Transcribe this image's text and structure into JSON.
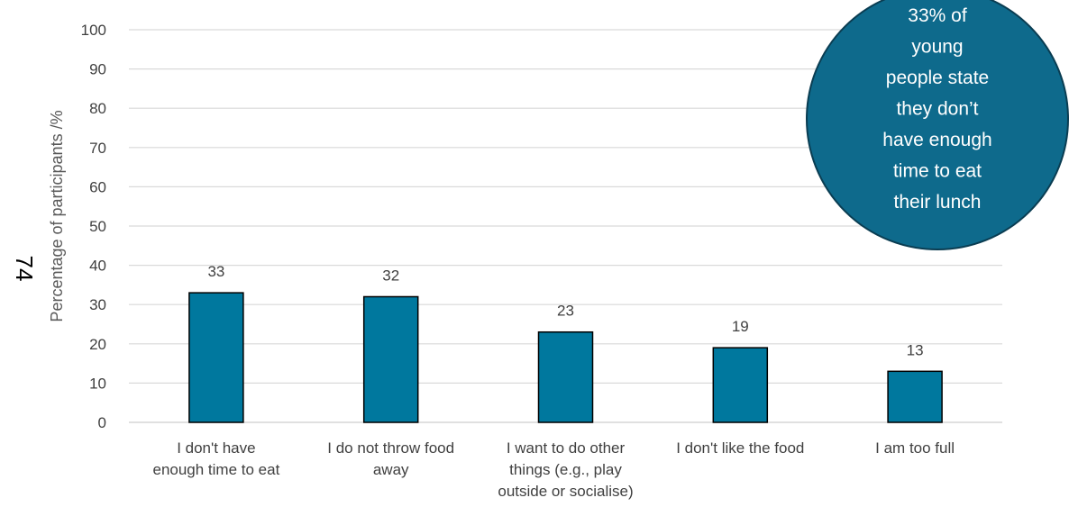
{
  "page_number": "74",
  "chart_data": {
    "type": "bar",
    "categories": [
      [
        "I don't have",
        "enough time to eat"
      ],
      [
        "I do not throw food",
        "away"
      ],
      [
        "I want to do other",
        "things (e.g., play",
        "outside or socialise)"
      ],
      [
        "I don't like the food"
      ],
      [
        "I am too full"
      ]
    ],
    "values": [
      33,
      32,
      23,
      19,
      13
    ],
    "data_labels": [
      "33",
      "32",
      "23",
      "19",
      "13"
    ],
    "ylabel": "Percentage of participants /%",
    "ylim": [
      0,
      100
    ],
    "yticks": [
      "0",
      "10",
      "20",
      "30",
      "40",
      "50",
      "60",
      "70",
      "80",
      "90",
      "100"
    ],
    "grid": true,
    "bar_color": "#00789e",
    "annotation": {
      "lines": [
        "33% of",
        "young",
        "people state",
        "they don’t",
        "have enough",
        "time to eat",
        "their lunch"
      ],
      "color": "#0e6a8c"
    }
  }
}
